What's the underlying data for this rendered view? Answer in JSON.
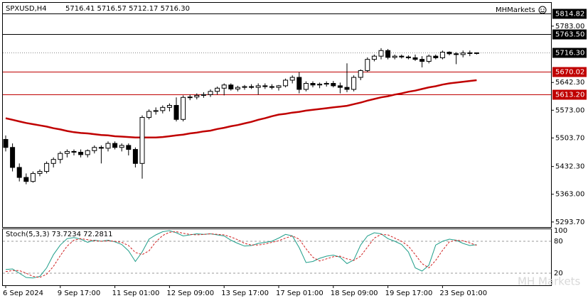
{
  "chart_data": {
    "type": "candlestick",
    "title": "SPXUSD,H4",
    "info": "5716.41 5716.57 5712.17 5716.30",
    "brand": "MHMarkets",
    "watermark": "MH Markets",
    "categories": [
      "6 Sep 2024",
      null,
      null,
      null,
      null,
      null,
      null,
      null,
      "9 Sep 17:00",
      null,
      null,
      null,
      null,
      null,
      null,
      null,
      "11 Sep 01:00",
      null,
      null,
      null,
      null,
      null,
      null,
      null,
      "12 Sep 09:00",
      null,
      null,
      null,
      null,
      null,
      null,
      null,
      "13 Sep 17:00",
      null,
      null,
      null,
      null,
      null,
      null,
      null,
      "17 Sep 01:00",
      null,
      null,
      null,
      null,
      null,
      null,
      null,
      "18 Sep 09:00",
      null,
      null,
      null,
      null,
      null,
      null,
      null,
      "19 Sep 17:00",
      null,
      null,
      null,
      null,
      null,
      null,
      null,
      "23 Sep 01:00",
      null,
      null,
      null,
      null,
      null
    ],
    "open": [
      5500,
      5480,
      5430,
      5405,
      5395,
      5415,
      5420,
      5440,
      5450,
      5465,
      5470,
      5468,
      5462,
      5472,
      5480,
      5478,
      5490,
      5480,
      5485,
      5475,
      5440,
      5555,
      5570,
      5572,
      5580,
      5585,
      5550,
      5605,
      5606,
      5610,
      5612,
      5620,
      5628,
      5636,
      5626,
      5630,
      5632,
      5630,
      5634,
      5632,
      5630,
      5634,
      5648,
      5655,
      5625,
      5640,
      5636,
      5638,
      5640,
      5634,
      5630,
      5625,
      5655,
      5672,
      5700,
      5708,
      5722,
      5705,
      5708,
      5706,
      5704,
      5700,
      5695,
      5708,
      5704,
      5718,
      5714,
      5712,
      5716,
      5716.41
    ],
    "high": [
      5510,
      5490,
      5440,
      5415,
      5420,
      5425,
      5445,
      5455,
      5470,
      5475,
      5475,
      5475,
      5475,
      5485,
      5485,
      5495,
      5495,
      5490,
      5490,
      5480,
      5560,
      5575,
      5580,
      5585,
      5590,
      5605,
      5610,
      5612,
      5615,
      5618,
      5625,
      5632,
      5640,
      5640,
      5634,
      5636,
      5638,
      5640,
      5640,
      5638,
      5636,
      5652,
      5660,
      5668,
      5645,
      5645,
      5642,
      5645,
      5646,
      5642,
      5690,
      5660,
      5675,
      5705,
      5712,
      5728,
      5726,
      5712,
      5712,
      5710,
      5712,
      5708,
      5712,
      5712,
      5722,
      5720,
      5718,
      5722,
      5722,
      5716.57
    ],
    "low": [
      5470,
      5420,
      5395,
      5388,
      5392,
      5408,
      5415,
      5430,
      5440,
      5455,
      5460,
      5455,
      5455,
      5465,
      5440,
      5470,
      5475,
      5470,
      5460,
      5430,
      5402,
      5550,
      5562,
      5565,
      5570,
      5545,
      5545,
      5598,
      5600,
      5604,
      5606,
      5612,
      5610,
      5622,
      5620,
      5624,
      5626,
      5612,
      5626,
      5625,
      5622,
      5630,
      5640,
      5615,
      5620,
      5630,
      5628,
      5632,
      5630,
      5615,
      5618,
      5620,
      5648,
      5668,
      5695,
      5700,
      5700,
      5700,
      5702,
      5700,
      5696,
      5680,
      5690,
      5700,
      5700,
      5710,
      5688,
      5705,
      5708,
      5712.17
    ],
    "close": [
      5480,
      5430,
      5405,
      5395,
      5415,
      5420,
      5440,
      5450,
      5465,
      5470,
      5468,
      5462,
      5472,
      5480,
      5478,
      5490,
      5480,
      5485,
      5475,
      5440,
      5555,
      5570,
      5572,
      5580,
      5585,
      5550,
      5605,
      5606,
      5610,
      5612,
      5620,
      5628,
      5636,
      5626,
      5630,
      5632,
      5630,
      5634,
      5632,
      5630,
      5634,
      5648,
      5655,
      5625,
      5640,
      5636,
      5638,
      5640,
      5634,
      5630,
      5625,
      5655,
      5672,
      5700,
      5708,
      5722,
      5705,
      5708,
      5706,
      5704,
      5700,
      5695,
      5708,
      5704,
      5718,
      5714,
      5712,
      5716,
      5716.41,
      5716.3
    ],
    "ma": {
      "color": "#c00000",
      "values": [
        5553,
        5549,
        5545,
        5541,
        5538,
        5535,
        5532,
        5528,
        5525,
        5521,
        5518,
        5516,
        5515,
        5513,
        5511,
        5510,
        5508,
        5507,
        5506,
        5505,
        5505,
        5505,
        5505,
        5506,
        5508,
        5510,
        5512,
        5515,
        5517,
        5520,
        5522,
        5526,
        5529,
        5533,
        5536,
        5540,
        5544,
        5549,
        5553,
        5558,
        5562,
        5564,
        5567,
        5569,
        5572,
        5574,
        5576,
        5578,
        5580,
        5582,
        5584,
        5588,
        5592,
        5597,
        5601,
        5605,
        5608,
        5612,
        5615,
        5619,
        5622,
        5626,
        5630,
        5633,
        5637,
        5640,
        5642,
        5644,
        5646,
        5648
      ]
    },
    "ylim": [
      5281,
      5843
    ],
    "yticks": [
      {
        "value": 5783,
        "label": "5783.00"
      },
      {
        "value": 5642.3,
        "label": "5642.30"
      },
      {
        "value": 5573,
        "label": "5573.00"
      },
      {
        "value": 5503.7,
        "label": "5503.70"
      },
      {
        "value": 5432.3,
        "label": "5432.30"
      },
      {
        "value": 5363,
        "label": "5363.00"
      },
      {
        "value": 5293.7,
        "label": "5293.70"
      }
    ],
    "levels": [
      {
        "value": 5814.82,
        "color": "#000000",
        "style": "solid"
      },
      {
        "value": 5763.5,
        "label": "5763.50",
        "color": "#000000",
        "style": "solid"
      },
      {
        "value": 5716.3,
        "label": "5716.30",
        "color": "#000000",
        "style": "dotted"
      },
      {
        "value": 5670.02,
        "color": "#c00000",
        "style": "solid"
      },
      {
        "value": 5613.2,
        "label": "5613.20",
        "color": "#c00000",
        "style": "solid"
      }
    ],
    "stoch": {
      "title": "Stoch(5,3,3) 73.7234 72.2811",
      "ylim": [
        0,
        100
      ],
      "yticks": [
        100,
        80,
        20
      ],
      "levels": [
        80,
        20
      ],
      "series": [
        {
          "color": "#1f9e8a",
          "style": "solid",
          "values": [
            27,
            28,
            20,
            12,
            11,
            14,
            30,
            55,
            73,
            85,
            87,
            84,
            78,
            82,
            80,
            82,
            79,
            74,
            62,
            42,
            60,
            84,
            92,
            98,
            100,
            96,
            90,
            92,
            94,
            93,
            94,
            92,
            90,
            82,
            76,
            71,
            72,
            76,
            78,
            80,
            86,
            93,
            90,
            68,
            40,
            42,
            48,
            52,
            54,
            50,
            38,
            45,
            73,
            90,
            96,
            94,
            85,
            80,
            74,
            60,
            30,
            24,
            35,
            73,
            80,
            84,
            82,
            76,
            72,
            73.7234
          ]
        },
        {
          "color": "#d02020",
          "style": "dashed",
          "values": [
            23,
            25,
            25,
            20,
            14,
            12,
            18,
            33,
            53,
            71,
            82,
            85,
            83,
            81,
            80,
            81,
            80,
            78,
            72,
            59,
            55,
            62,
            79,
            91,
            97,
            98,
            95,
            93,
            92,
            93,
            94,
            93,
            92,
            88,
            83,
            76,
            73,
            73,
            75,
            78,
            81,
            86,
            90,
            84,
            66,
            50,
            43,
            47,
            51,
            52,
            47,
            44,
            52,
            69,
            86,
            93,
            92,
            86,
            80,
            71,
            55,
            38,
            30,
            44,
            63,
            79,
            82,
            81,
            77,
            72.2811
          ]
        }
      ]
    }
  }
}
